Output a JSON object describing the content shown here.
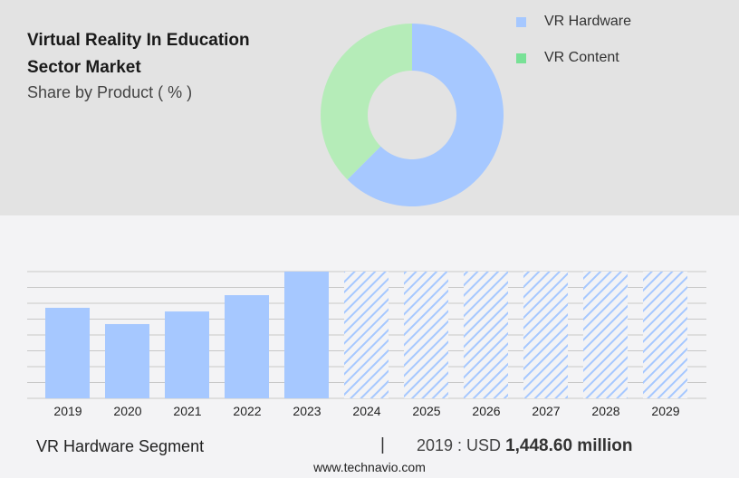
{
  "title": "Virtual Reality In Education Sector Market",
  "subtitle": "Share by Product ( % )",
  "colors": {
    "hardware": "#a6c8ff",
    "content": "#b5ecb8",
    "content_legend": "#78e196",
    "grid": "#c8c8c8"
  },
  "chart_data": [
    {
      "type": "pie",
      "donut": true,
      "title": "Virtual Reality In Education Sector Market",
      "subtitle": "Share by Product ( % )",
      "legend": "top-right",
      "slices": [
        {
          "name": "VR Hardware",
          "value": 62.5
        },
        {
          "name": "VR Content",
          "value": 37.5
        }
      ]
    },
    {
      "type": "bar",
      "categories": [
        "2019",
        "2020",
        "2021",
        "2022",
        "2023",
        "2024",
        "2025",
        "2026",
        "2027",
        "2028",
        "2029"
      ],
      "values": [
        1448.6,
        1188,
        1390,
        1651,
        2028,
        null,
        null,
        null,
        null,
        null,
        null
      ],
      "forecast_from": "2024",
      "grid": true,
      "ylim": [
        0,
        2028
      ]
    }
  ],
  "footer": {
    "segment": "VR Hardware Segment",
    "separator": "|",
    "year_label": "2019 : USD ",
    "value": "1,448.60 million",
    "source": "www.technavio.com"
  }
}
